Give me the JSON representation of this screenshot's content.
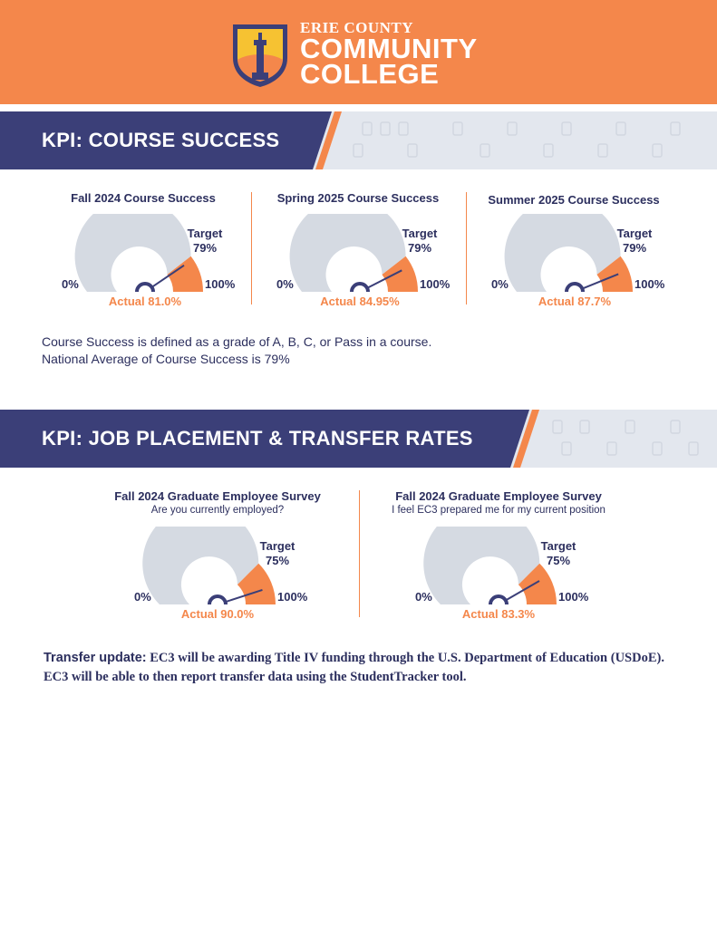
{
  "header": {
    "logo_line1": "ERIE COUNTY",
    "logo_line2": "COMMUNITY",
    "logo_line3": "COLLEGE"
  },
  "colors": {
    "orange": "#f4874b",
    "navy": "#3b3f78",
    "gray": "#d5dae2",
    "band_light": "#e3e7ee"
  },
  "sections": {
    "course_success": {
      "title": "KPI: COURSE SUCCESS",
      "gauges": [
        {
          "title": "Fall 2024 Course Success",
          "subtitle": "",
          "target_label": "Target",
          "target": "79%",
          "actual": "Actual 81.0%",
          "actual_value": 81.0,
          "target_value": 79,
          "min": "0%",
          "max": "100%"
        },
        {
          "title": "Spring 2025 Course Success",
          "subtitle": "",
          "target_label": "Target",
          "target": "79%",
          "actual": "Actual 84.95%",
          "actual_value": 84.95,
          "target_value": 79,
          "min": "0%",
          "max": "100%"
        },
        {
          "title": "Summer 2025 Course Success",
          "subtitle": "",
          "target_label": "Target",
          "target": "79%",
          "actual": "Actual 87.7%",
          "actual_value": 87.7,
          "target_value": 79,
          "min": "0%",
          "max": "100%"
        }
      ],
      "notes": [
        "Course Success is defined as a grade of A, B, C, or Pass in a course.",
        "National Average of Course Success is 79%"
      ]
    },
    "job_placement": {
      "title": "KPI: JOB PLACEMENT & TRANSFER RATES",
      "gauges": [
        {
          "title": "Fall 2024 Graduate Employee Survey",
          "subtitle": "Are you currently employed?",
          "target_label": "Target",
          "target": "75%",
          "actual": "Actual 90.0%",
          "actual_value": 90.0,
          "target_value": 75,
          "min": "0%",
          "max": "100%"
        },
        {
          "title": "Fall 2024 Graduate Employee Survey",
          "subtitle": "I feel EC3 prepared me for my current position",
          "target_label": "Target",
          "target": "75%",
          "actual": "Actual 83.3%",
          "actual_value": 83.3,
          "target_value": 75,
          "min": "0%",
          "max": "100%"
        }
      ],
      "transfer_lead": "Transfer update:",
      "transfer_text": " EC3 will be awarding Title IV funding through the U.S. Department of Education (USDoE). EC3 will be able to then report transfer data using the StudentTracker tool."
    }
  }
}
